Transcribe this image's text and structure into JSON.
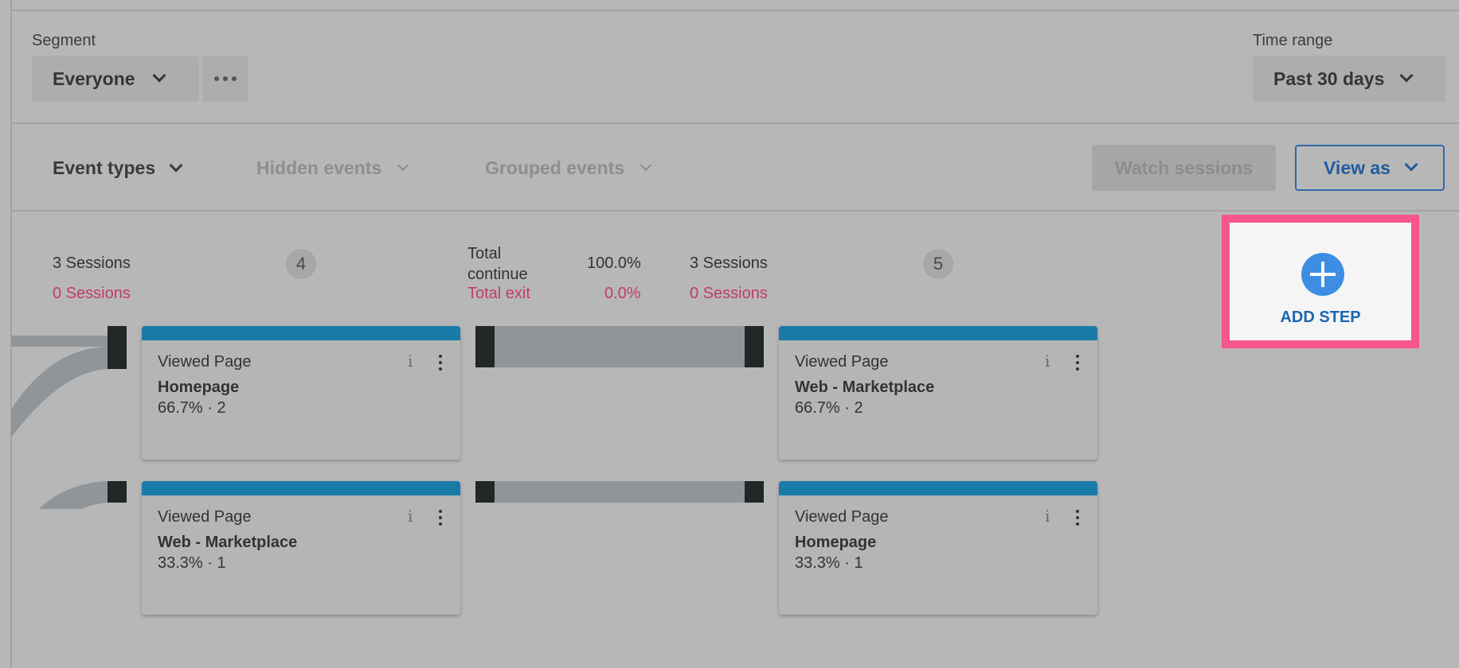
{
  "filters": {
    "segment_label": "Segment",
    "segment_value": "Everyone",
    "time_range_label": "Time range",
    "time_range_value": "Past 30 days"
  },
  "toolbar": {
    "event_types": "Event types",
    "hidden_events": "Hidden events",
    "grouped_events": "Grouped events",
    "watch_sessions": "Watch sessions",
    "view_as": "View as"
  },
  "stats": {
    "step4": {
      "sessions": "3 Sessions",
      "exit_sessions": "0 Sessions",
      "number": "4"
    },
    "connector": {
      "total_continue": "Total continue",
      "continue_pct": "100.0%",
      "total_exit": "Total exit",
      "exit_pct": "0.0%"
    },
    "step5": {
      "sessions": "3 Sessions",
      "exit_sessions": "0 Sessions",
      "number": "5"
    }
  },
  "cards": [
    {
      "event": "Viewed Page",
      "page": "Homepage",
      "metric": "66.7% · 2"
    },
    {
      "event": "Viewed Page",
      "page": "Web - Marketplace",
      "metric": "33.3% · 1"
    },
    {
      "event": "Viewed Page",
      "page": "Web - Marketplace",
      "metric": "66.7% · 2"
    },
    {
      "event": "Viewed Page",
      "page": "Homepage",
      "metric": "33.3% · 1"
    }
  ],
  "card_info_glyph": "i",
  "add_step": {
    "label": "ADD STEP"
  },
  "colors": {
    "card_bar": "#1a7aa8",
    "highlight": "#f6558e",
    "accent_blue": "#3d8ee2",
    "exit_pink": "#c03c6b"
  }
}
